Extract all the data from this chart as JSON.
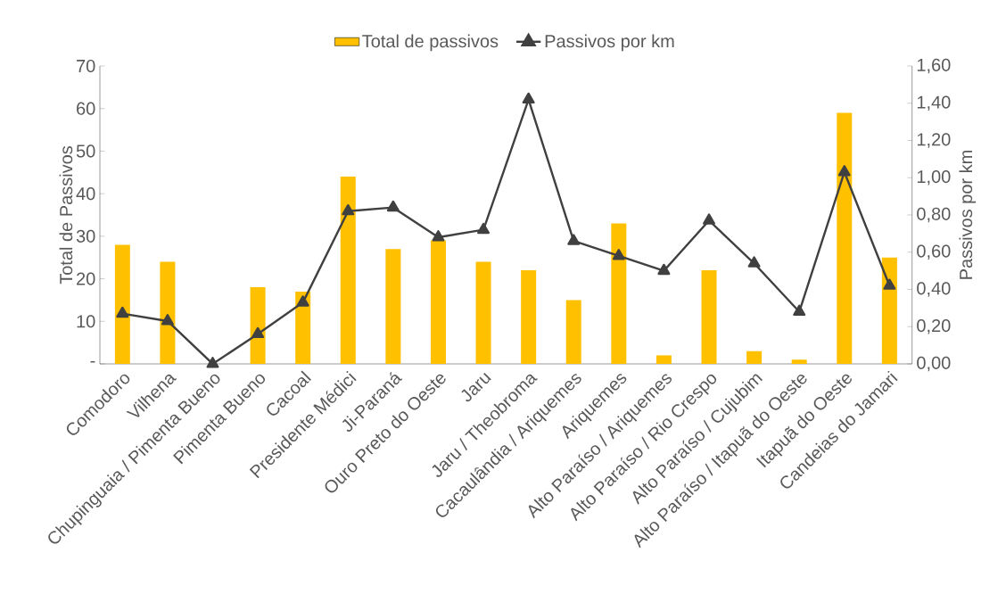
{
  "chart_data": {
    "type": "bar",
    "categories": [
      "Comodoro",
      "Vilhena",
      "Chupinguaia / Pimenta Bueno",
      "Pimenta Bueno",
      "Cacoal",
      "Presidente Médici",
      "Ji-Paraná",
      "Ouro Preto do Oeste",
      "Jaru",
      "Jaru / Theobroma",
      "Cacaulândia / Ariquemes",
      "Ariquemes",
      "Alto Paraíso / Ariquemes",
      "Alto Paraíso / Rio Crespo",
      "Alto Paraíso / Cujubim",
      "Alto Paraíso / Itapuã do Oeste",
      "Itapuã do Oeste",
      "Candeias do Jamari"
    ],
    "series": [
      {
        "name": "Total de passivos",
        "color": "#ffc000",
        "values": [
          28,
          24,
          0,
          18,
          17,
          44,
          27,
          29,
          24,
          22,
          15,
          33,
          2,
          22,
          3,
          1,
          59,
          25
        ]
      },
      {
        "name": "Passivos por km",
        "type": "line",
        "axis": "y2",
        "color": "#404040",
        "values": [
          0.27,
          0.23,
          0.0,
          0.16,
          0.33,
          0.82,
          0.84,
          0.68,
          0.72,
          1.42,
          0.66,
          0.58,
          0.5,
          0.77,
          0.54,
          0.28,
          1.03,
          0.42
        ]
      }
    ],
    "ylabel": "Total de Passivos",
    "y2label": "Passivos por km",
    "ylim": [
      0,
      70
    ],
    "yticks": [
      {
        "value": 0,
        "label": "-"
      },
      10,
      20,
      30,
      40,
      50,
      60,
      70
    ],
    "y2lim": [
      0,
      1.6
    ],
    "y2ticks": [
      {
        "value": 0,
        "label": "0,00"
      },
      {
        "value": 0.2,
        "label": "0,20"
      },
      {
        "value": 0.4,
        "label": "0,40"
      },
      {
        "value": 0.6,
        "label": "0,60"
      },
      {
        "value": 0.8,
        "label": "0,80"
      },
      {
        "value": 1.0,
        "label": "1,00"
      },
      {
        "value": 1.2,
        "label": "1,20"
      },
      {
        "value": 1.4,
        "label": "1,40"
      },
      {
        "value": 1.6,
        "label": "1,60"
      }
    ],
    "legend": "top",
    "marker": "triangle",
    "line_style": "solid"
  }
}
